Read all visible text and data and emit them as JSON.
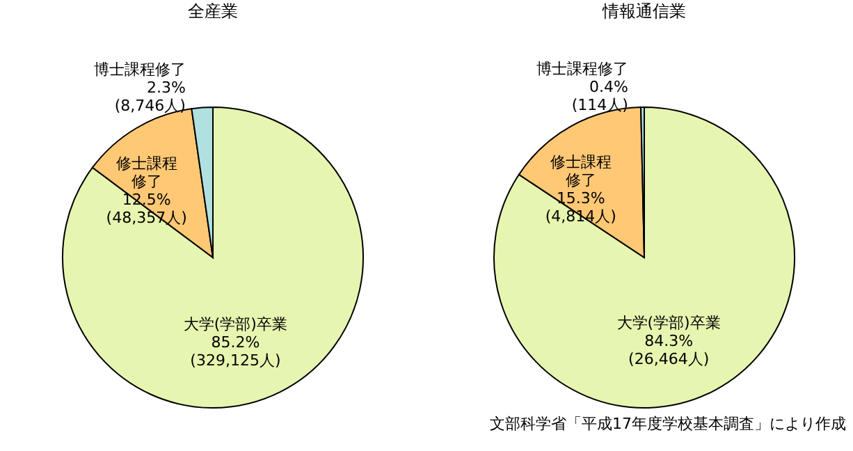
{
  "chart_data": [
    {
      "type": "pie",
      "title": "全産業",
      "categories": [
        "大学(学部)卒業",
        "修士課程修了",
        "博士課程修了"
      ],
      "values": [
        329125,
        48357,
        8746
      ],
      "colors": [
        "#e6f5b0",
        "#ffc875",
        "#b0e0e0"
      ],
      "value_labels": [
        "85.2%\n(329,125人)",
        "12.5%\n(48,357人)",
        "2.3%\n(8,746人)"
      ],
      "legend": false
    },
    {
      "type": "pie",
      "title": "情報通信業",
      "categories": [
        "大学(学部)卒業",
        "修士課程修了",
        "博士課程修了"
      ],
      "values": [
        26464,
        4814,
        114
      ],
      "colors": [
        "#e6f5b0",
        "#ffc875",
        "#b0e0e0"
      ],
      "value_labels": [
        "84.3%\n(26,464人)",
        "15.3%\n(4,814人)",
        "0.4%\n(114人)"
      ],
      "legend": false,
      "annotations": [
        "文部科学省「平成17年度学校基本調査」により作成"
      ]
    }
  ]
}
